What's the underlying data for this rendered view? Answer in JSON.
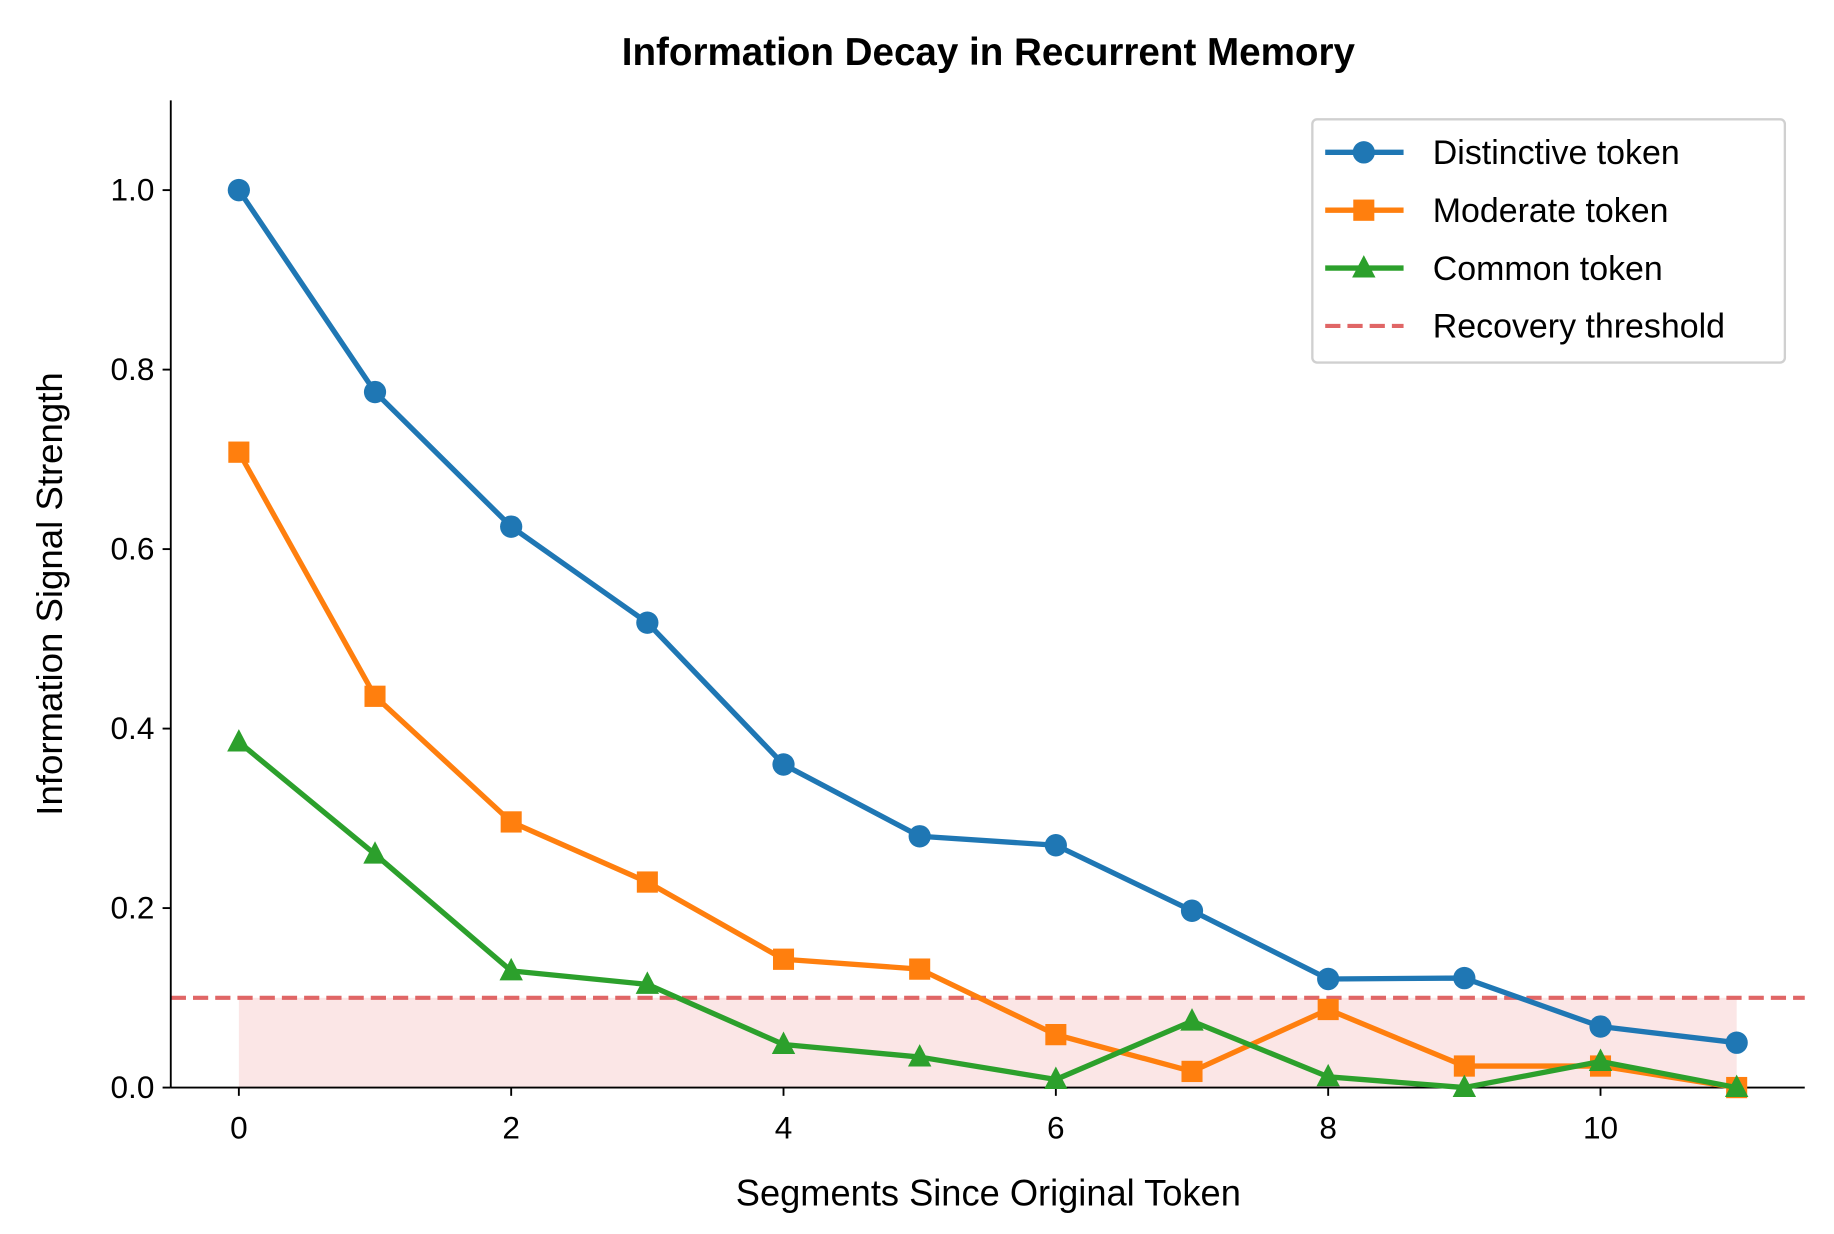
{
  "chart_data": {
    "type": "line",
    "title": "Information Decay in Recurrent Memory",
    "xlabel": "Segments Since Original Token",
    "ylabel": "Information Signal Strength",
    "xlim": [
      -0.5,
      11.5
    ],
    "ylim": [
      0,
      1.1
    ],
    "xticks": [
      0,
      2,
      4,
      6,
      8,
      10
    ],
    "yticks": [
      0.0,
      0.2,
      0.4,
      0.6,
      0.8,
      1.0
    ],
    "xtick_labels": [
      "0",
      "2",
      "4",
      "6",
      "8",
      "10"
    ],
    "ytick_labels": [
      "0.0",
      "0.2",
      "0.4",
      "0.6",
      "0.8",
      "1.0"
    ],
    "grid": false,
    "legend_position": "top-right",
    "x": [
      0,
      1,
      2,
      3,
      4,
      5,
      6,
      7,
      8,
      9,
      10,
      11
    ],
    "series": [
      {
        "name": "Distinctive token",
        "color": "#1f77b4",
        "marker": "circle",
        "values": [
          1.0,
          0.775,
          0.625,
          0.518,
          0.36,
          0.28,
          0.27,
          0.197,
          0.121,
          0.122,
          0.068,
          0.05
        ]
      },
      {
        "name": "Moderate token",
        "color": "#ff7f0e",
        "marker": "square",
        "values": [
          0.708,
          0.436,
          0.296,
          0.229,
          0.143,
          0.132,
          0.059,
          0.018,
          0.087,
          0.024,
          0.024,
          0.0
        ]
      },
      {
        "name": "Common token",
        "color": "#2ca02c",
        "marker": "triangle",
        "values": [
          0.385,
          0.26,
          0.13,
          0.115,
          0.048,
          0.034,
          0.009,
          0.074,
          0.012,
          0.0,
          0.029,
          0.0
        ]
      }
    ],
    "threshold": {
      "name": "Recovery threshold",
      "value": 0.1,
      "color": "#e06666",
      "style": "dashed",
      "shaded_region": {
        "x": [
          0,
          11
        ],
        "y": [
          0,
          0.1
        ],
        "color": "#fbe6e6"
      }
    }
  }
}
